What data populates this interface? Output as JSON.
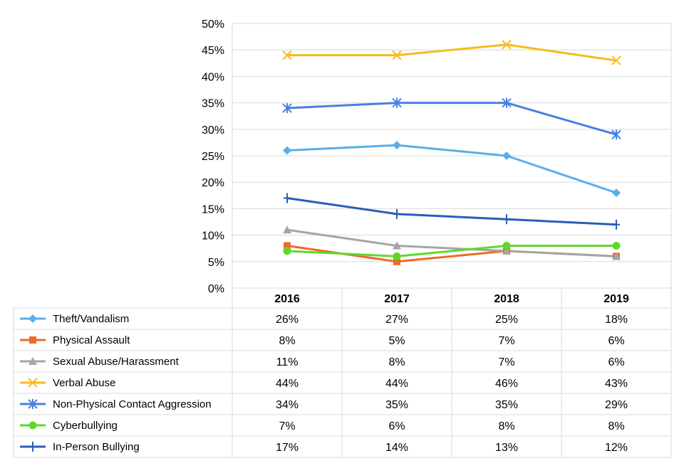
{
  "chart_data": {
    "type": "line",
    "title": "",
    "xlabel": "",
    "ylabel": "",
    "categories": [
      "2016",
      "2017",
      "2018",
      "2019"
    ],
    "ylim": [
      0,
      50
    ],
    "y_ticks": [
      0,
      5,
      10,
      15,
      20,
      25,
      30,
      35,
      40,
      45,
      50
    ],
    "y_tick_labels": [
      "0%",
      "5%",
      "10%",
      "15%",
      "20%",
      "25%",
      "30%",
      "35%",
      "40%",
      "45%",
      "50%"
    ],
    "grid": true,
    "legend_placement": "data-table-left",
    "series": [
      {
        "name": "Theft/Vandalism",
        "values": [
          26,
          27,
          25,
          18
        ],
        "labels": [
          "26%",
          "27%",
          "25%",
          "18%"
        ],
        "color": "#5BAEEB",
        "marker": "diamond"
      },
      {
        "name": "Physical Assault",
        "values": [
          8,
          5,
          7,
          6
        ],
        "labels": [
          "8%",
          "5%",
          "7%",
          "6%"
        ],
        "color": "#EE6A2A",
        "marker": "square"
      },
      {
        "name": "Sexual Abuse/Harassment",
        "values": [
          11,
          8,
          7,
          6
        ],
        "labels": [
          "11%",
          "8%",
          "7%",
          "6%"
        ],
        "color": "#A5A5A5",
        "marker": "triangle"
      },
      {
        "name": "Verbal Abuse",
        "values": [
          44,
          44,
          46,
          43
        ],
        "labels": [
          "44%",
          "44%",
          "46%",
          "43%"
        ],
        "color": "#F6BB1E",
        "marker": "x"
      },
      {
        "name": "Non-Physical Contact Aggression",
        "values": [
          34,
          35,
          35,
          29
        ],
        "labels": [
          "34%",
          "35%",
          "35%",
          "29%"
        ],
        "color": "#4A7FE0",
        "marker": "star"
      },
      {
        "name": "Cyberbullying",
        "values": [
          7,
          6,
          8,
          8
        ],
        "labels": [
          "7%",
          "6%",
          "8%",
          "8%"
        ],
        "color": "#60D82A",
        "marker": "circle"
      },
      {
        "name": "In-Person Bullying",
        "values": [
          17,
          14,
          13,
          12
        ],
        "labels": [
          "17%",
          "14%",
          "13%",
          "12%"
        ],
        "color": "#2B5CB8",
        "marker": "plus"
      }
    ]
  }
}
